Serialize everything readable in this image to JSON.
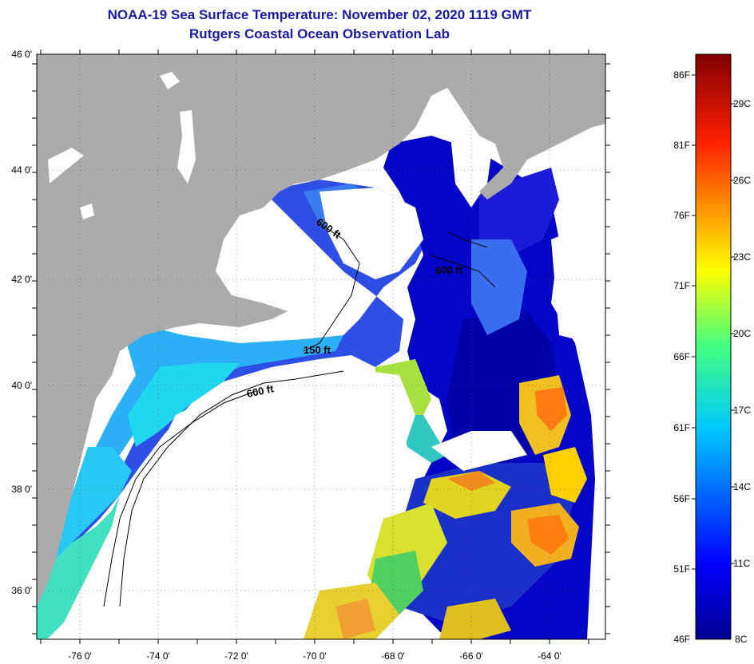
{
  "title_line1": "NOAA-19 Sea Surface Temperature:  November 02, 2020 1119 GMT",
  "title_line2": "Rutgers Coastal Ocean Observation Lab",
  "lat_labels": [
    "46 0'",
    "44 0'",
    "42 0'",
    "40 0'",
    "38 0'",
    "36 0'"
  ],
  "lon_labels": [
    "-76 0'",
    "-74 0'",
    "-72 0'",
    "-70 0'",
    "-68 0'",
    "-66 0'",
    "-64 0'"
  ],
  "contour_labels": [
    "600 ft",
    "600 ft",
    "150 ft",
    "600 ft"
  ],
  "colorbar": {
    "fahrenheit": [
      "86F",
      "81F",
      "76F",
      "71F",
      "66F",
      "61F",
      "56F",
      "51F",
      "46F"
    ],
    "celsius": [
      "29C",
      "26C",
      "23C",
      "20C",
      "17C",
      "14C",
      "11C",
      "8C"
    ]
  },
  "colors": {
    "title": "#1a1aa8",
    "land": "#ababab",
    "cloud": "#ffffff"
  }
}
